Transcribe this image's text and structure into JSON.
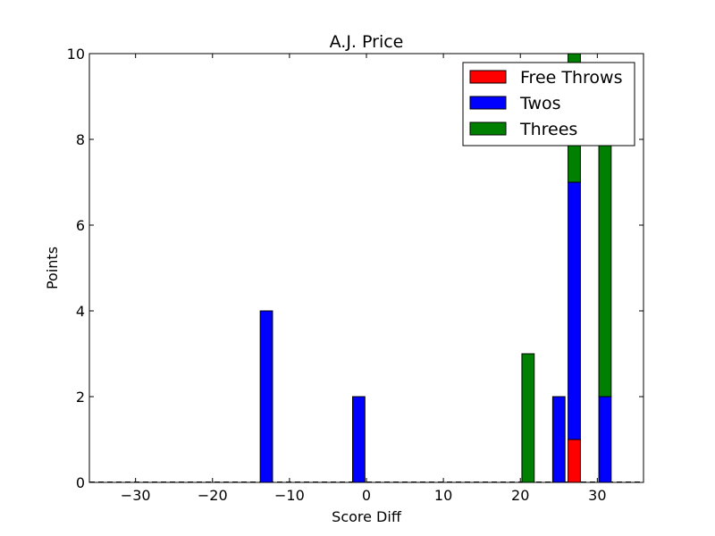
{
  "chart_data": {
    "type": "bar",
    "stacked": true,
    "title": "A.J. Price",
    "xlabel": "Score Diff",
    "ylabel": "Points",
    "xlim": [
      -36,
      36
    ],
    "ylim": [
      0,
      10
    ],
    "xticks": [
      -30,
      -20,
      -10,
      0,
      10,
      20,
      30
    ],
    "xtick_labels": [
      "−30",
      "−20",
      "−10",
      "0",
      "10",
      "20",
      "30"
    ],
    "yticks": [
      0,
      2,
      4,
      6,
      8,
      10
    ],
    "ytick_labels": [
      "0",
      "2",
      "4",
      "6",
      "8",
      "10"
    ],
    "bar_width": 1.6,
    "grid": false,
    "legend_position": "top-right",
    "x": [
      -13,
      -1,
      21,
      25,
      27,
      31
    ],
    "series": [
      {
        "name": "Free Throws",
        "color": "#ff0000",
        "values": [
          0,
          0,
          0,
          0,
          1,
          0
        ]
      },
      {
        "name": "Twos",
        "color": "#0000ff",
        "values": [
          4,
          2,
          0,
          2,
          6,
          2
        ]
      },
      {
        "name": "Threes",
        "color": "#008000",
        "values": [
          0,
          0,
          3,
          0,
          3,
          6
        ]
      }
    ]
  }
}
